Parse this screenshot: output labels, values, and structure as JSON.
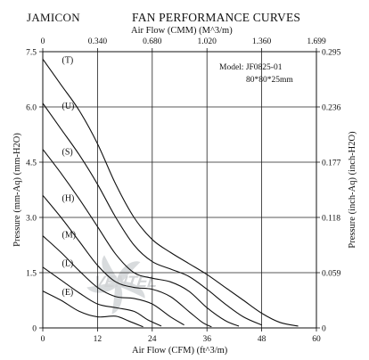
{
  "brand": "JAMICON",
  "chart_data": {
    "type": "line",
    "title": "FAN PERFORMANCE CURVES",
    "model_line1": "Model:  JF0825-01",
    "model_line2": "80*80*25mm",
    "watermark": "VENTEL",
    "xlabel_bottom": "Air Flow (CFM) (ft^3/m)",
    "xlabel_top": "Air Flow (CMM) (M^3/m)",
    "ylabel_left": "Pressure (mm-Aq) (mm-H2O)",
    "ylabel_right": "Pressure (inch-Aq) (inch-H2O)",
    "xlim": [
      0,
      60
    ],
    "ylim": [
      0,
      7.5
    ],
    "grid": true,
    "x_ticks_bottom": [
      {
        "value": 0,
        "label": "0"
      },
      {
        "value": 12,
        "label": "12"
      },
      {
        "value": 24,
        "label": "24"
      },
      {
        "value": 36,
        "label": "36"
      },
      {
        "value": 48,
        "label": "48"
      },
      {
        "value": 60,
        "label": "60"
      }
    ],
    "x_ticks_top": [
      {
        "value": 0,
        "label": "0"
      },
      {
        "value": 12,
        "label": "0.340"
      },
      {
        "value": 24,
        "label": "0.680"
      },
      {
        "value": 36,
        "label": "1.020"
      },
      {
        "value": 48,
        "label": "1.360"
      },
      {
        "value": 60,
        "label": "1.699"
      }
    ],
    "y_ticks_left": [
      {
        "value": 0,
        "label": "0"
      },
      {
        "value": 1.5,
        "label": "1.5"
      },
      {
        "value": 3.0,
        "label": "3.0"
      },
      {
        "value": 4.5,
        "label": "4.5"
      },
      {
        "value": 6.0,
        "label": "6.0"
      },
      {
        "value": 7.5,
        "label": "7.5"
      }
    ],
    "y_ticks_right": [
      {
        "value": 0,
        "label": "0"
      },
      {
        "value": 1.5,
        "label": "0.059"
      },
      {
        "value": 3.0,
        "label": "0.118"
      },
      {
        "value": 4.5,
        "label": "0.177"
      },
      {
        "value": 6.0,
        "label": "0.236"
      },
      {
        "value": 7.5,
        "label": "0.295"
      }
    ],
    "series": [
      {
        "name": "(T)",
        "label_at": [
          4.2,
          7.2
        ],
        "points": [
          [
            0,
            7.3
          ],
          [
            4,
            6.6
          ],
          [
            8,
            5.9
          ],
          [
            12,
            5.0
          ],
          [
            16,
            3.9
          ],
          [
            20,
            3.0
          ],
          [
            24,
            2.4
          ],
          [
            28,
            2.05
          ],
          [
            32,
            1.75
          ],
          [
            36,
            1.45
          ],
          [
            40,
            1.1
          ],
          [
            44,
            0.75
          ],
          [
            48,
            0.4
          ],
          [
            52,
            0.15
          ],
          [
            56,
            0.05
          ]
        ]
      },
      {
        "name": "(U)",
        "label_at": [
          4.2,
          5.95
        ],
        "points": [
          [
            0,
            6.1
          ],
          [
            4,
            5.4
          ],
          [
            8,
            4.7
          ],
          [
            12,
            3.9
          ],
          [
            16,
            3.0
          ],
          [
            20,
            2.25
          ],
          [
            24,
            1.8
          ],
          [
            28,
            1.6
          ],
          [
            32,
            1.4
          ],
          [
            36,
            1.05
          ],
          [
            40,
            0.65
          ],
          [
            44,
            0.3
          ],
          [
            48,
            0.08
          ]
        ]
      },
      {
        "name": "(S)",
        "label_at": [
          4.2,
          4.7
        ],
        "points": [
          [
            0,
            4.85
          ],
          [
            4,
            4.2
          ],
          [
            8,
            3.5
          ],
          [
            12,
            2.75
          ],
          [
            16,
            2.0
          ],
          [
            20,
            1.5
          ],
          [
            24,
            1.35
          ],
          [
            28,
            1.25
          ],
          [
            32,
            1.0
          ],
          [
            36,
            0.55
          ],
          [
            40,
            0.2
          ],
          [
            43,
            0.05
          ]
        ]
      },
      {
        "name": "(H)",
        "label_at": [
          4.2,
          3.45
        ],
        "points": [
          [
            0,
            3.6
          ],
          [
            4,
            3.0
          ],
          [
            8,
            2.35
          ],
          [
            12,
            1.7
          ],
          [
            16,
            1.25
          ],
          [
            20,
            1.1
          ],
          [
            24,
            1.05
          ],
          [
            28,
            0.85
          ],
          [
            32,
            0.45
          ],
          [
            35,
            0.15
          ],
          [
            37,
            0.03
          ]
        ]
      },
      {
        "name": "(M)",
        "label_at": [
          4.2,
          2.45
        ],
        "points": [
          [
            0,
            2.5
          ],
          [
            4,
            2.05
          ],
          [
            8,
            1.55
          ],
          [
            12,
            1.1
          ],
          [
            16,
            0.85
          ],
          [
            20,
            0.8
          ],
          [
            24,
            0.65
          ],
          [
            28,
            0.3
          ],
          [
            31,
            0.08
          ]
        ]
      },
      {
        "name": "(L)",
        "label_at": [
          4.2,
          1.68
        ],
        "points": [
          [
            0,
            1.65
          ],
          [
            4,
            1.3
          ],
          [
            8,
            0.95
          ],
          [
            12,
            0.65
          ],
          [
            16,
            0.55
          ],
          [
            20,
            0.45
          ],
          [
            23,
            0.22
          ],
          [
            26,
            0.05
          ]
        ]
      },
      {
        "name": "(E)",
        "label_at": [
          4.2,
          0.9
        ],
        "points": [
          [
            0,
            1.0
          ],
          [
            4,
            0.75
          ],
          [
            8,
            0.45
          ],
          [
            12,
            0.3
          ],
          [
            16,
            0.32
          ],
          [
            19,
            0.18
          ],
          [
            22,
            0.03
          ]
        ]
      }
    ]
  }
}
